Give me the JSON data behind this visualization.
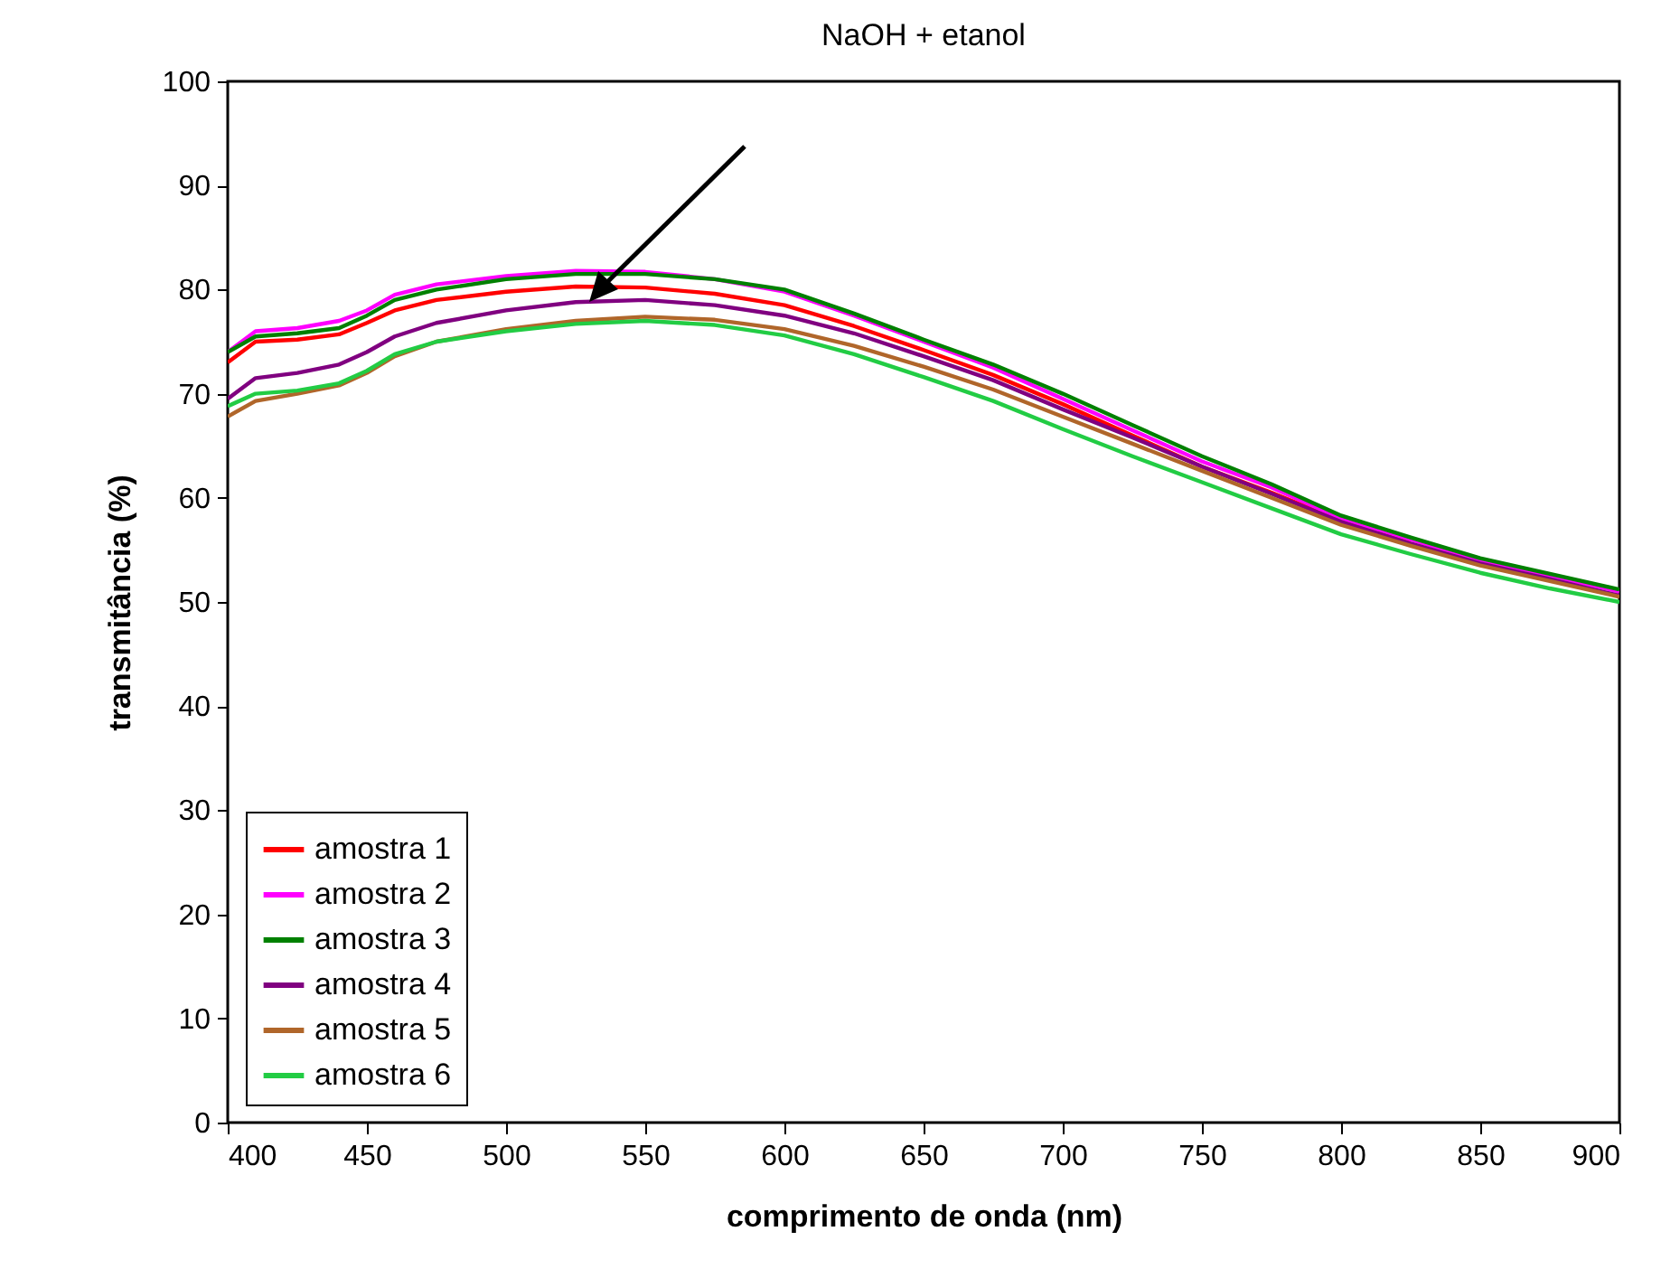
{
  "chart_data": {
    "type": "line",
    "title": "NaOH + etanol",
    "xlabel": "comprimento de onda (nm)",
    "ylabel": "transmitância (%)",
    "x": [
      400,
      410,
      425,
      440,
      450,
      460,
      475,
      500,
      525,
      550,
      575,
      600,
      625,
      650,
      675,
      700,
      725,
      750,
      775,
      800,
      825,
      850,
      875,
      900
    ],
    "series": [
      {
        "name": "amostra 1",
        "color": "#ff0000",
        "values": [
          73,
          75,
          75.2,
          75.7,
          76.8,
          78,
          79,
          79.8,
          80.3,
          80.2,
          79.6,
          78.5,
          76.5,
          74.2,
          71.8,
          69,
          66,
          63,
          60.5,
          57.8,
          55.7,
          null,
          null,
          null
        ]
      },
      {
        "name": "amostra 2",
        "color": "#ff00ff",
        "values": [
          74,
          76,
          76.3,
          77,
          78,
          79.5,
          80.5,
          81.3,
          81.8,
          81.7,
          81,
          79.8,
          77.5,
          75,
          72.5,
          69.5,
          66.5,
          63.5,
          61,
          58,
          56,
          54,
          52.5,
          51
        ]
      },
      {
        "name": "amostra 3",
        "color": "#008000",
        "values": [
          74,
          75.5,
          75.8,
          76.3,
          77.5,
          79,
          80,
          81,
          81.5,
          81.5,
          81,
          80,
          77.7,
          75.2,
          72.8,
          70,
          67,
          64,
          61.3,
          58.3,
          56.2,
          54.2,
          52.7,
          51.2
        ]
      },
      {
        "name": "amostra 4",
        "color": "#800080",
        "values": [
          69.5,
          71.5,
          72,
          72.8,
          74,
          75.5,
          76.8,
          78,
          78.8,
          79,
          78.5,
          77.5,
          75.8,
          73.6,
          71.3,
          68.5,
          65.8,
          63,
          60.4,
          57.7,
          55.6,
          53.7,
          52.2,
          50.6
        ]
      },
      {
        "name": "amostra 5",
        "color": "#b0662a",
        "values": [
          67.8,
          69.3,
          70,
          70.8,
          72,
          73.6,
          75,
          76.2,
          77,
          77.4,
          77.1,
          76.2,
          74.6,
          72.6,
          70.4,
          67.8,
          65.2,
          62.6,
          60,
          57.4,
          55.4,
          53.5,
          52,
          50.5
        ]
      },
      {
        "name": "amostra 6",
        "color": "#22cc44",
        "values": [
          68.8,
          70,
          70.3,
          71,
          72.2,
          73.8,
          75,
          76,
          76.7,
          77,
          76.6,
          75.6,
          73.8,
          71.6,
          69.3,
          66.6,
          64,
          61.5,
          59,
          56.5,
          54.6,
          52.8,
          51.3,
          50
        ]
      }
    ],
    "xlim": [
      400,
      900
    ],
    "xticks": [
      400,
      450,
      500,
      550,
      600,
      650,
      700,
      750,
      800,
      850,
      900
    ],
    "ylim": [
      0,
      100
    ],
    "yticks": [
      0,
      10,
      20,
      30,
      40,
      50,
      60,
      70,
      80,
      90,
      100
    ],
    "grid": false,
    "legend": "bottom left",
    "line_style": "solid"
  }
}
